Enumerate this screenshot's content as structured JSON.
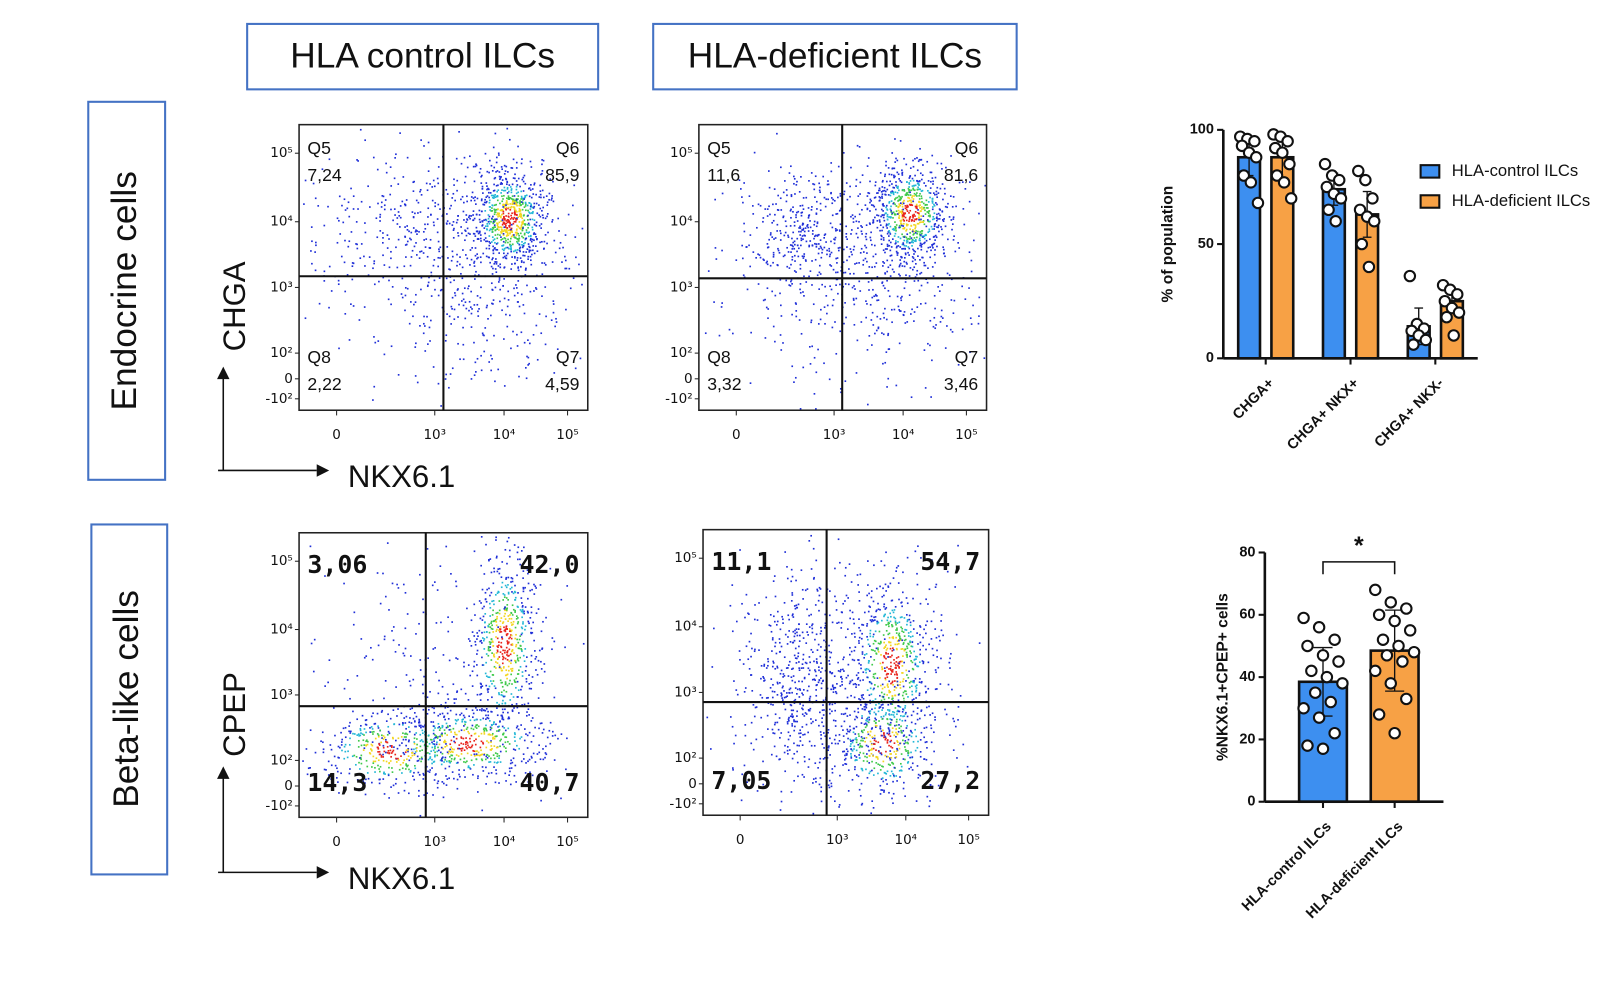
{
  "headers": [
    "HLA control ILCs",
    "HLA-deficient ILCs"
  ],
  "row_labels": [
    "Endocrine cells",
    "Beta-like cells"
  ],
  "flow_axis": {
    "yticks": [
      "10⁵",
      "10⁴",
      "10³",
      "10²",
      "0",
      "-10²"
    ],
    "xticks": [
      "0",
      "10³",
      "10⁴",
      "10⁵"
    ]
  },
  "flow_rows": [
    {
      "y_label": "CHGA",
      "x_label": "NKX6.1",
      "plots": [
        {
          "quadrants": [
            {
              "name": "Q5",
              "value": "7,24"
            },
            {
              "name": "Q6",
              "value": "85,9"
            },
            {
              "name": "Q8",
              "value": "2,22"
            },
            {
              "name": "Q7",
              "value": "4,59"
            }
          ]
        },
        {
          "quadrants": [
            {
              "name": "Q5",
              "value": "11,6"
            },
            {
              "name": "Q6",
              "value": "81,6"
            },
            {
              "name": "Q8",
              "value": "3,32"
            },
            {
              "name": "Q7",
              "value": "3,46"
            }
          ]
        }
      ]
    },
    {
      "y_label": "CPEP",
      "x_label": "NKX6.1",
      "plots": [
        {
          "quadrants": [
            {
              "value": "3,06"
            },
            {
              "value": "42,0"
            },
            {
              "value": "14,3"
            },
            {
              "value": "40,7"
            }
          ]
        },
        {
          "quadrants": [
            {
              "value": "11,1"
            },
            {
              "value": "54,7"
            },
            {
              "value": "7,05"
            },
            {
              "value": "27,2"
            }
          ]
        }
      ]
    }
  ],
  "chart_data": [
    {
      "type": "bar",
      "y_label": "% of population",
      "categories": [
        "CHGA+",
        "CHGA+ NKX+",
        "CHGA+ NKX-"
      ],
      "ylim": [
        0,
        100
      ],
      "yticks": [
        0,
        50,
        100
      ],
      "series": [
        {
          "name": "HLA-control ILCs",
          "color": "#3d8ff0",
          "values": [
            88,
            74,
            14
          ],
          "errors": [
            8,
            7,
            8
          ],
          "points": [
            [
              97,
              96,
              95,
              93,
              90,
              88,
              80,
              77,
              68
            ],
            [
              85,
              80,
              78,
              75,
              72,
              70,
              65,
              60
            ],
            [
              36,
              15,
              13,
              12,
              10,
              8,
              6
            ]
          ]
        },
        {
          "name": "HLA-deficient ILCs",
          "color": "#f7a145",
          "values": [
            88,
            63,
            25
          ],
          "errors": [
            9,
            10,
            4
          ],
          "points": [
            [
              98,
              97,
              95,
              92,
              90,
              85,
              80,
              77,
              70
            ],
            [
              82,
              78,
              70,
              65,
              62,
              60,
              50,
              40
            ],
            [
              32,
              30,
              28,
              25,
              22,
              20,
              18,
              10
            ]
          ]
        }
      ]
    },
    {
      "type": "bar",
      "y_label": "%NKX6.1+CPEP+ cells",
      "categories": [
        "HLA-control ILCs",
        "HLA-deficient ILCs"
      ],
      "colors": [
        "#3d8ff0",
        "#f7a145"
      ],
      "values": [
        38.5,
        48.5
      ],
      "errors": [
        11,
        13
      ],
      "points": [
        [
          59,
          56,
          52,
          50,
          47,
          45,
          42,
          40,
          38,
          35,
          32,
          30,
          27,
          22,
          18,
          17
        ],
        [
          68,
          64,
          62,
          60,
          58,
          55,
          52,
          50,
          48,
          47,
          45,
          42,
          38,
          33,
          28,
          22
        ]
      ],
      "ylim": [
        0,
        80
      ],
      "yticks": [
        0,
        20,
        40,
        60,
        80
      ],
      "annotation": "*"
    }
  ]
}
